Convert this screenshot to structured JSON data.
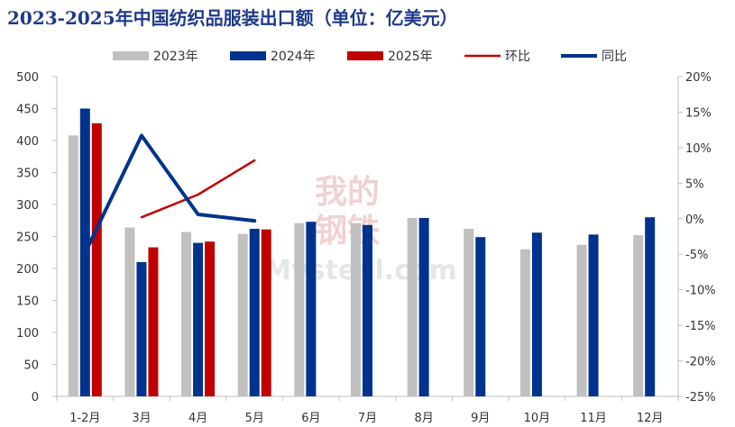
{
  "chart_data": {
    "type": "bar",
    "title": "2023-2025年中国纺织品服装出口额（单位：亿美元）",
    "categories": [
      "1-2月",
      "3月",
      "4月",
      "5月",
      "6月",
      "7月",
      "8月",
      "9月",
      "10月",
      "11月",
      "12月"
    ],
    "series": [
      {
        "name": "2023年",
        "type": "bar",
        "axis": "left",
        "color": "#c0c0c0",
        "values": [
          408,
          264,
          257,
          254,
          271,
          271,
          279,
          262,
          230,
          237,
          252
        ]
      },
      {
        "name": "2024年",
        "type": "bar",
        "axis": "left",
        "color": "#00338d",
        "values": [
          450,
          210,
          240,
          262,
          273,
          268,
          279,
          249,
          256,
          253,
          280
        ]
      },
      {
        "name": "2025年",
        "type": "bar",
        "axis": "left",
        "color": "#c00000",
        "values": [
          427,
          233,
          242,
          261,
          null,
          null,
          null,
          null,
          null,
          null,
          null
        ]
      },
      {
        "name": "环比",
        "type": "line",
        "axis": "right",
        "color": "#c00000",
        "values": [
          null,
          0.2,
          3.4,
          8.2,
          null,
          null,
          null,
          null,
          null,
          null,
          null
        ]
      },
      {
        "name": "同比",
        "type": "line",
        "axis": "right",
        "color": "#00338d",
        "values": [
          -4.8,
          11.7,
          0.6,
          -0.3,
          null,
          null,
          null,
          null,
          null,
          null,
          null
        ]
      }
    ],
    "yaxis_left": {
      "min": 0,
      "max": 500,
      "ticks": [
        "0",
        "50",
        "100",
        "150",
        "200",
        "250",
        "300",
        "350",
        "400",
        "450",
        "500"
      ]
    },
    "yaxis_right": {
      "min": -25,
      "max": 20,
      "ticks": [
        "-25%",
        "-20%",
        "-15%",
        "-10%",
        "-5%",
        "0%",
        "5%",
        "10%",
        "15%",
        "20%"
      ]
    },
    "legend_position": "top",
    "grid": false
  },
  "watermark": {
    "line1": "我的",
    "line2": "钢铁",
    "line3": "Mysteel.com",
    "color": "#e8b4b4"
  }
}
